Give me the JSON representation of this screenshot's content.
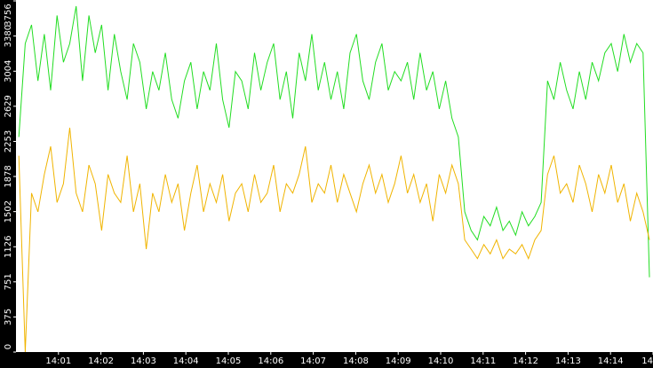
{
  "chart_data": {
    "type": "line",
    "x": [
      4,
      13,
      22,
      31,
      40,
      49,
      58,
      67,
      76,
      85,
      94,
      103,
      112,
      121,
      130,
      139,
      148,
      157,
      166,
      175,
      184,
      193,
      202,
      211,
      220,
      229,
      238,
      247,
      256,
      265,
      274,
      283,
      292,
      301,
      310,
      319,
      328,
      337,
      346,
      355,
      364,
      373,
      382,
      391,
      400,
      409,
      418,
      427,
      436,
      445,
      454,
      463,
      472,
      481,
      490,
      499,
      508,
      517,
      526,
      535,
      544,
      553,
      562,
      571,
      580,
      589,
      598,
      607,
      616,
      625,
      634,
      643,
      652,
      661,
      670,
      679,
      688,
      697,
      706,
      715,
      724,
      733,
      742,
      751,
      760,
      769,
      778,
      787,
      796,
      805,
      814,
      823,
      832,
      841,
      850,
      859,
      868,
      877,
      886,
      895
    ],
    "series": [
      {
        "color": "#22dd22",
        "values": [
          2300,
          3300,
          3500,
          2900,
          3400,
          2800,
          3600,
          3100,
          3300,
          3700,
          2900,
          3600,
          3200,
          3500,
          2800,
          3400,
          3000,
          2700,
          3300,
          3100,
          2600,
          3000,
          2800,
          3200,
          2700,
          2500,
          2900,
          3100,
          2600,
          3000,
          2800,
          3300,
          2700,
          2400,
          3000,
          2900,
          2600,
          3200,
          2800,
          3100,
          3300,
          2700,
          3000,
          2500,
          3200,
          2900,
          3400,
          2800,
          3100,
          2700,
          3000,
          2600,
          3200,
          3400,
          2900,
          2700,
          3100,
          3300,
          2800,
          3000,
          2900,
          3100,
          2700,
          3200,
          2800,
          3000,
          2600,
          2900,
          2500,
          2300,
          1500,
          1300,
          1200,
          1450,
          1350,
          1550,
          1300,
          1400,
          1250,
          1500,
          1350,
          1450,
          1600,
          2900,
          2700,
          3100,
          2800,
          2600,
          3000,
          2700,
          3100,
          2900,
          3200,
          3300,
          3000,
          3400,
          3100,
          3300,
          3200,
          800
        ]
      },
      {
        "color": "#f0b400",
        "values": [
          2100,
          0,
          1700,
          1500,
          1900,
          2200,
          1600,
          1800,
          2400,
          1700,
          1500,
          2000,
          1800,
          1300,
          1900,
          1700,
          1600,
          2100,
          1500,
          1800,
          1100,
          1700,
          1500,
          1900,
          1600,
          1800,
          1300,
          1700,
          2000,
          1500,
          1800,
          1600,
          1900,
          1400,
          1700,
          1800,
          1500,
          1900,
          1600,
          1700,
          2000,
          1500,
          1800,
          1700,
          1900,
          2200,
          1600,
          1800,
          1700,
          2000,
          1600,
          1900,
          1700,
          1500,
          1800,
          2000,
          1700,
          1900,
          1600,
          1800,
          2100,
          1700,
          1900,
          1600,
          1800,
          1400,
          1900,
          1700,
          2000,
          1800,
          1200,
          1100,
          1000,
          1150,
          1050,
          1200,
          1000,
          1100,
          1050,
          1150,
          1000,
          1200,
          1300,
          1900,
          2100,
          1700,
          1800,
          1600,
          2000,
          1800,
          1500,
          1900,
          1700,
          2000,
          1600,
          1800,
          1400,
          1700,
          1500,
          1200
        ]
      }
    ],
    "xlim": [
      0,
      900
    ],
    "xticks": [
      {
        "value": 60,
        "label": "14:01"
      },
      {
        "value": 120,
        "label": "14:02"
      },
      {
        "value": 180,
        "label": "14:03"
      },
      {
        "value": 240,
        "label": "14:04"
      },
      {
        "value": 300,
        "label": "14:05"
      },
      {
        "value": 360,
        "label": "14:06"
      },
      {
        "value": 420,
        "label": "14:07"
      },
      {
        "value": 480,
        "label": "14:08"
      },
      {
        "value": 540,
        "label": "14:09"
      },
      {
        "value": 600,
        "label": "14:10"
      },
      {
        "value": 660,
        "label": "14:11"
      },
      {
        "value": 720,
        "label": "14:12"
      },
      {
        "value": 780,
        "label": "14:13"
      },
      {
        "value": 840,
        "label": "14:14"
      },
      {
        "value": 900,
        "label": "14"
      }
    ],
    "ylim": [
      0,
      3756
    ],
    "yticks": [
      0,
      375,
      751,
      1126,
      1502,
      1878,
      2253,
      2629,
      3004,
      3380,
      3756
    ]
  }
}
